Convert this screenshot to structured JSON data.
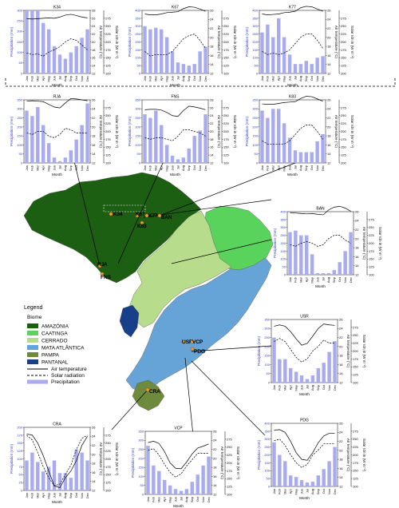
{
  "axis_text": {
    "precip_label": "Precipitation (mm)",
    "temp_label": "Air temperature (°C)",
    "solar_label": "Solar rdn in (W m⁻²)",
    "month_label": "Month",
    "month_ticks": [
      "Jan",
      "Feb",
      "Mar",
      "Apr",
      "May",
      "Jun",
      "Jul",
      "Aug",
      "Sep",
      "Oct",
      "Nov",
      "Dec"
    ]
  },
  "legend": {
    "title": "Legend",
    "biome_title": "Biome",
    "biomes": [
      {
        "label": "AMAZÔNIA",
        "color": "#1c5e12"
      },
      {
        "label": "CAATINGA",
        "color": "#59d35c"
      },
      {
        "label": "CERRADO",
        "color": "#b7dc8c"
      },
      {
        "label": "MATA ATLÂNTICA",
        "color": "#66a4d8"
      },
      {
        "label": "PAMPA",
        "color": "#6e8a3c"
      },
      {
        "label": "PANTANAL",
        "color": "#173f8a"
      }
    ],
    "lines": [
      {
        "label": "Air temperature",
        "style": "solid"
      },
      {
        "label": "Solar radiation",
        "style": "dashed"
      },
      {
        "label": "Precipitation",
        "style": "bar"
      }
    ]
  },
  "map_sites": [
    "K34",
    "K67",
    "K77",
    "K83",
    "RJA",
    "FNS",
    "BAN",
    "USR",
    "VCP",
    "PDG",
    "CRA"
  ],
  "chart_data": [
    {
      "type": "bar",
      "site": "K34",
      "title": "K34",
      "ylim": [
        0,
        300
      ],
      "yticks": [
        0,
        50,
        100,
        150,
        200,
        250,
        300
      ],
      "t_ticks": [
        12,
        14,
        16,
        18,
        20,
        22,
        24,
        26,
        28
      ],
      "s_ticks": [
        100,
        125,
        150,
        175,
        200,
        225,
        250,
        275
      ],
      "precip": [
        300,
        300,
        300,
        240,
        210,
        130,
        90,
        70,
        100,
        130,
        170,
        210
      ],
      "temp": [
        25.9,
        25.8,
        25.9,
        26.0,
        26.1,
        26.0,
        26.3,
        26.8,
        27.0,
        26.7,
        26.3,
        26.1
      ],
      "solar": [
        165,
        160,
        162,
        155,
        168,
        175,
        185,
        200,
        210,
        205,
        190,
        175
      ]
    },
    {
      "type": "bar",
      "site": "K67",
      "title": "K67",
      "ylim": [
        0,
        400
      ],
      "yticks": [
        0,
        50,
        100,
        150,
        200,
        250,
        300,
        350,
        400
      ],
      "t_ticks": [
        12,
        14,
        16,
        18,
        20,
        22,
        24,
        26
      ],
      "s_ticks": [
        100,
        125,
        150,
        175,
        200,
        225,
        250,
        275
      ],
      "precip": [
        300,
        280,
        290,
        280,
        230,
        140,
        70,
        60,
        50,
        60,
        140,
        170
      ],
      "temp": [
        25.2,
        25.0,
        25.0,
        25.2,
        25.5,
        25.6,
        25.7,
        26.4,
        26.8,
        26.7,
        26.3,
        25.8
      ],
      "solar": [
        170,
        155,
        160,
        160,
        160,
        170,
        190,
        210,
        220,
        225,
        205,
        180
      ]
    },
    {
      "type": "bar",
      "site": "K77",
      "title": "K77",
      "ylim": [
        0,
        400
      ],
      "yticks": [
        0,
        50,
        100,
        150,
        200,
        250,
        300,
        350,
        400
      ],
      "t_ticks": [
        12,
        14,
        16,
        18,
        20,
        22,
        24,
        26
      ],
      "s_ticks": [
        100,
        125,
        150,
        175,
        200,
        225,
        250,
        275
      ],
      "precip": [
        260,
        310,
        230,
        350,
        230,
        120,
        60,
        60,
        80,
        60,
        100,
        110
      ],
      "temp": [
        25.2,
        25.0,
        25.1,
        25.2,
        25.5,
        25.6,
        25.8,
        26.6,
        26.9,
        26.8,
        26.3,
        25.8
      ],
      "solar": [
        170,
        160,
        165,
        160,
        165,
        175,
        195,
        215,
        225,
        225,
        205,
        180
      ]
    },
    {
      "type": "bar",
      "site": "RJA",
      "title": "RJA",
      "ylim": [
        0,
        350
      ],
      "yticks": [
        0,
        50,
        100,
        150,
        200,
        250,
        300,
        350
      ],
      "t_ticks": [
        12,
        14,
        16,
        18,
        20,
        22,
        24,
        26
      ],
      "s_ticks": [
        100,
        125,
        150,
        175,
        200,
        225,
        250,
        275
      ],
      "precip": [
        290,
        260,
        310,
        210,
        110,
        30,
        10,
        30,
        70,
        130,
        210,
        330
      ],
      "temp": [
        25.7,
        25.8,
        25.7,
        25.6,
        25.0,
        24.4,
        24.2,
        25.3,
        26.3,
        26.2,
        26.0,
        25.8
      ],
      "solar": [
        195,
        190,
        200,
        200,
        185,
        180,
        190,
        210,
        205,
        195,
        195,
        195
      ]
    },
    {
      "type": "bar",
      "site": "FNS",
      "title": "FNS",
      "ylim": [
        0,
        350
      ],
      "yticks": [
        0,
        50,
        100,
        150,
        200,
        250,
        300,
        350
      ],
      "t_ticks": [
        12,
        14,
        16,
        18,
        20,
        22,
        24,
        26,
        28
      ],
      "s_ticks": [
        100,
        125,
        150,
        175,
        200,
        225,
        250,
        275
      ],
      "precip": [
        270,
        250,
        290,
        210,
        100,
        40,
        20,
        30,
        80,
        150,
        180,
        270
      ],
      "temp": [
        25.5,
        25.6,
        25.6,
        25.4,
        24.8,
        24.0,
        23.8,
        25.3,
        26.4,
        26.2,
        25.9,
        25.5
      ],
      "solar": [
        180,
        175,
        180,
        180,
        175,
        170,
        185,
        205,
        205,
        200,
        195,
        185
      ]
    },
    {
      "type": "bar",
      "site": "K83",
      "title": "K83",
      "ylim": [
        0,
        350
      ],
      "yticks": [
        0,
        50,
        100,
        150,
        200,
        250,
        300,
        350
      ],
      "t_ticks": [
        12,
        14,
        16,
        18,
        20,
        22,
        24,
        26
      ],
      "s_ticks": [
        100,
        125,
        150,
        175,
        200,
        225,
        250,
        275
      ],
      "precip": [
        290,
        250,
        300,
        300,
        220,
        140,
        70,
        60,
        60,
        60,
        120,
        160
      ],
      "temp": [
        25.1,
        25.0,
        25.0,
        25.2,
        25.4,
        25.5,
        25.6,
        26.3,
        26.8,
        26.7,
        26.2,
        25.7
      ],
      "solar": [
        170,
        160,
        160,
        160,
        160,
        170,
        190,
        210,
        220,
        220,
        200,
        175
      ]
    },
    {
      "type": "bar",
      "site": "BAN",
      "title": "BAN",
      "ylim": [
        0,
        400
      ],
      "yticks": [
        0,
        50,
        100,
        150,
        200,
        250,
        300,
        350,
        400
      ],
      "t_ticks": [
        12,
        14,
        16,
        18,
        20,
        22,
        24,
        26
      ],
      "s_ticks": [
        100,
        125,
        150,
        175,
        200,
        225,
        250,
        275
      ],
      "precip": [
        270,
        280,
        250,
        250,
        130,
        10,
        10,
        10,
        30,
        80,
        150,
        270
      ],
      "temp": [
        25.8,
        25.7,
        25.6,
        25.5,
        25.6,
        25.4,
        25.3,
        26.4,
        27.0,
        27.2,
        26.8,
        26.1
      ],
      "solar": [
        195,
        190,
        200,
        205,
        200,
        190,
        195,
        215,
        225,
        225,
        210,
        200
      ]
    },
    {
      "type": "bar",
      "site": "USR",
      "title": "USR",
      "ylim": [
        0,
        350
      ],
      "yticks": [
        0,
        50,
        100,
        150,
        200,
        250,
        300,
        350
      ],
      "t_ticks": [
        12,
        14,
        16,
        18,
        20,
        22,
        24,
        26
      ],
      "s_ticks": [
        100,
        125,
        150,
        175,
        200,
        225,
        250,
        275
      ],
      "precip": [
        250,
        130,
        130,
        80,
        60,
        40,
        20,
        40,
        80,
        110,
        170,
        230
      ],
      "temp": [
        24.5,
        24.8,
        24.5,
        23.3,
        21.7,
        20.3,
        20.7,
        22.3,
        24.0,
        25.0,
        24.8,
        24.7
      ],
      "solar": [
        230,
        240,
        230,
        205,
        180,
        165,
        175,
        200,
        215,
        235,
        225,
        225
      ]
    },
    {
      "type": "bar",
      "site": "CRA",
      "title": "CRA",
      "ylim": [
        0,
        200
      ],
      "yticks": [
        0,
        25,
        50,
        75,
        100,
        125,
        150,
        175,
        200
      ],
      "t_ticks": [
        12,
        14,
        16,
        18,
        20,
        22,
        24,
        26
      ],
      "s_ticks": [
        100,
        125,
        150,
        175,
        200,
        225,
        250,
        275
      ],
      "precip": [
        95,
        120,
        90,
        60,
        75,
        95,
        55,
        55,
        40,
        130,
        120,
        95
      ],
      "temp": [
        24.5,
        24.3,
        22.5,
        19.7,
        16.3,
        13.0,
        12.6,
        14.8,
        16.3,
        18.6,
        22.0,
        24.0
      ],
      "solar": [
        275,
        260,
        220,
        175,
        140,
        115,
        120,
        150,
        180,
        230,
        265,
        275
      ]
    },
    {
      "type": "bar",
      "site": "VCP",
      "title": "VCP",
      "ylim": [
        0,
        350
      ],
      "yticks": [
        0,
        50,
        100,
        150,
        200,
        250,
        300,
        350
      ],
      "t_ticks": [
        12,
        14,
        16,
        18,
        20,
        22,
        24,
        26
      ],
      "s_ticks": [
        100,
        125,
        150,
        175,
        200,
        225,
        250,
        275
      ],
      "precip": [
        270,
        160,
        130,
        80,
        50,
        30,
        20,
        30,
        70,
        110,
        160,
        210
      ],
      "temp": [
        23.5,
        23.8,
        23.3,
        21.5,
        19.0,
        17.8,
        17.7,
        19.2,
        21.0,
        22.3,
        22.7,
        23.2
      ],
      "solar": [
        240,
        245,
        225,
        195,
        170,
        155,
        165,
        190,
        210,
        230,
        230,
        230
      ]
    },
    {
      "type": "bar",
      "site": "PDG",
      "title": "PDG",
      "ylim": [
        0,
        400
      ],
      "yticks": [
        0,
        50,
        100,
        150,
        200,
        250,
        300,
        350,
        400
      ],
      "t_ticks": [
        12,
        14,
        16,
        18,
        20,
        22,
        24,
        26
      ],
      "s_ticks": [
        100,
        125,
        150,
        175,
        200,
        225,
        250,
        275
      ],
      "precip": [
        280,
        200,
        160,
        70,
        60,
        40,
        25,
        30,
        70,
        110,
        160,
        250
      ],
      "temp": [
        24.5,
        24.6,
        24.0,
        22.0,
        19.5,
        18.0,
        17.8,
        19.5,
        21.7,
        23.2,
        23.8,
        23.8
      ],
      "solar": [
        245,
        250,
        230,
        200,
        175,
        160,
        170,
        200,
        215,
        235,
        235,
        235
      ]
    }
  ]
}
